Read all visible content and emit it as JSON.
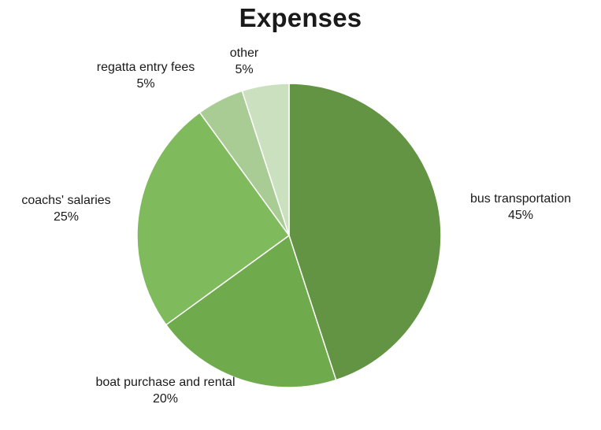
{
  "chart_data": {
    "type": "pie",
    "title": "Expenses",
    "start_angle_deg": 0,
    "direction": "clockwise",
    "slices": [
      {
        "label": "bus transportation",
        "value": 45,
        "value_label": "45%",
        "color": "#639443"
      },
      {
        "label": "boat purchase and rental",
        "value": 20,
        "value_label": "20%",
        "color": "#6faa4c"
      },
      {
        "label": "coachs' salaries",
        "value": 25,
        "value_label": "25%",
        "color": "#7fbb5d"
      },
      {
        "label": "regatta entry fees",
        "value": 5,
        "value_label": "5%",
        "color": "#a9cc95"
      },
      {
        "label": "other",
        "value": 5,
        "value_label": "5%",
        "color": "#cbe0bf"
      }
    ]
  }
}
